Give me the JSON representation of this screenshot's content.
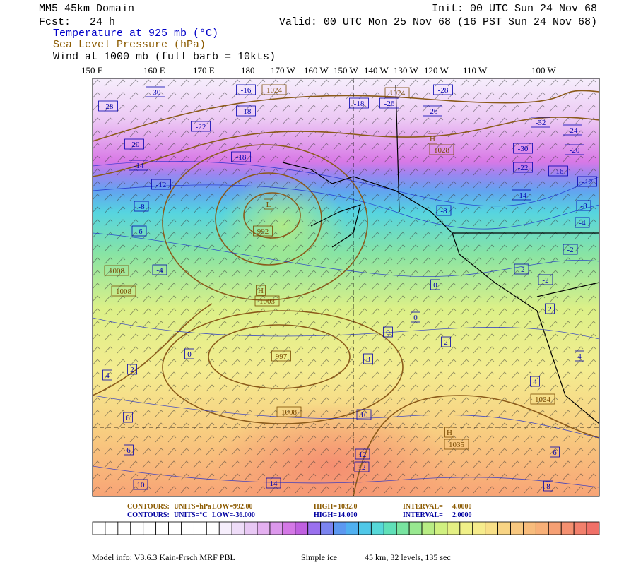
{
  "header": {
    "domain": "MM5 45km Domain",
    "forecast": "Fcst:   24 h",
    "init": "Init: 00 UTC Sun 24 Nov 68",
    "valid": "Valid: 00 UTC Mon 25 Nov 68 (16 PST Sun 24 Nov 68)"
  },
  "fields": [
    "Temperature at 925 mb (°C)",
    "Sea Level Pressure (hPa)",
    "Wind at 1000 mb (full barb = 10kts)"
  ],
  "longitudes": [
    "150 E",
    "160 E",
    "170 E",
    "180",
    "170 W",
    "160 W",
    "150 W",
    "140 W",
    "130 W",
    "120 W",
    "110 W",
    "100 W"
  ],
  "map_labels": [
    "-30",
    "-16",
    "1024",
    "-28",
    "-18",
    "-26",
    "1024",
    "-28",
    "-18",
    "-26",
    "-22",
    "-32",
    "-24",
    "-20",
    "H",
    "1028",
    "-30",
    "-20",
    "-14",
    "-18",
    "-22",
    "-16",
    "-12",
    "-12",
    "-14",
    "-8",
    "L",
    "-8",
    "-8",
    "-6",
    "992",
    "-4",
    "-2",
    "1008",
    "-4",
    "-2",
    "-2",
    "1008",
    "H",
    "1003",
    "0",
    "2",
    "0",
    "0",
    "2",
    "997",
    "0",
    "8",
    "4",
    "2",
    "4",
    "4",
    "1024",
    "1008",
    "10",
    "6",
    "H",
    "1035",
    "6",
    "12",
    "12",
    "6",
    "10",
    "14",
    "8"
  ],
  "footer": {
    "pressure": [
      "CONTOURS:",
      "UNITS=hPa",
      "LOW=",
      "992.00",
      "HIGH=",
      "1032.0",
      "INTERVAL=",
      "4.0000"
    ],
    "temperature": [
      "CONTOURS:",
      "UNITS=°C",
      "LOW=",
      "-36.000",
      "HIGH=",
      "14.000",
      "INTERVAL=",
      "2.0000"
    ],
    "model_info": [
      "Model info: V3.6.3 Kain-Frsch MRF PBL",
      "Simple ice",
      "45 km,  32 levels,  135 sec"
    ]
  }
}
